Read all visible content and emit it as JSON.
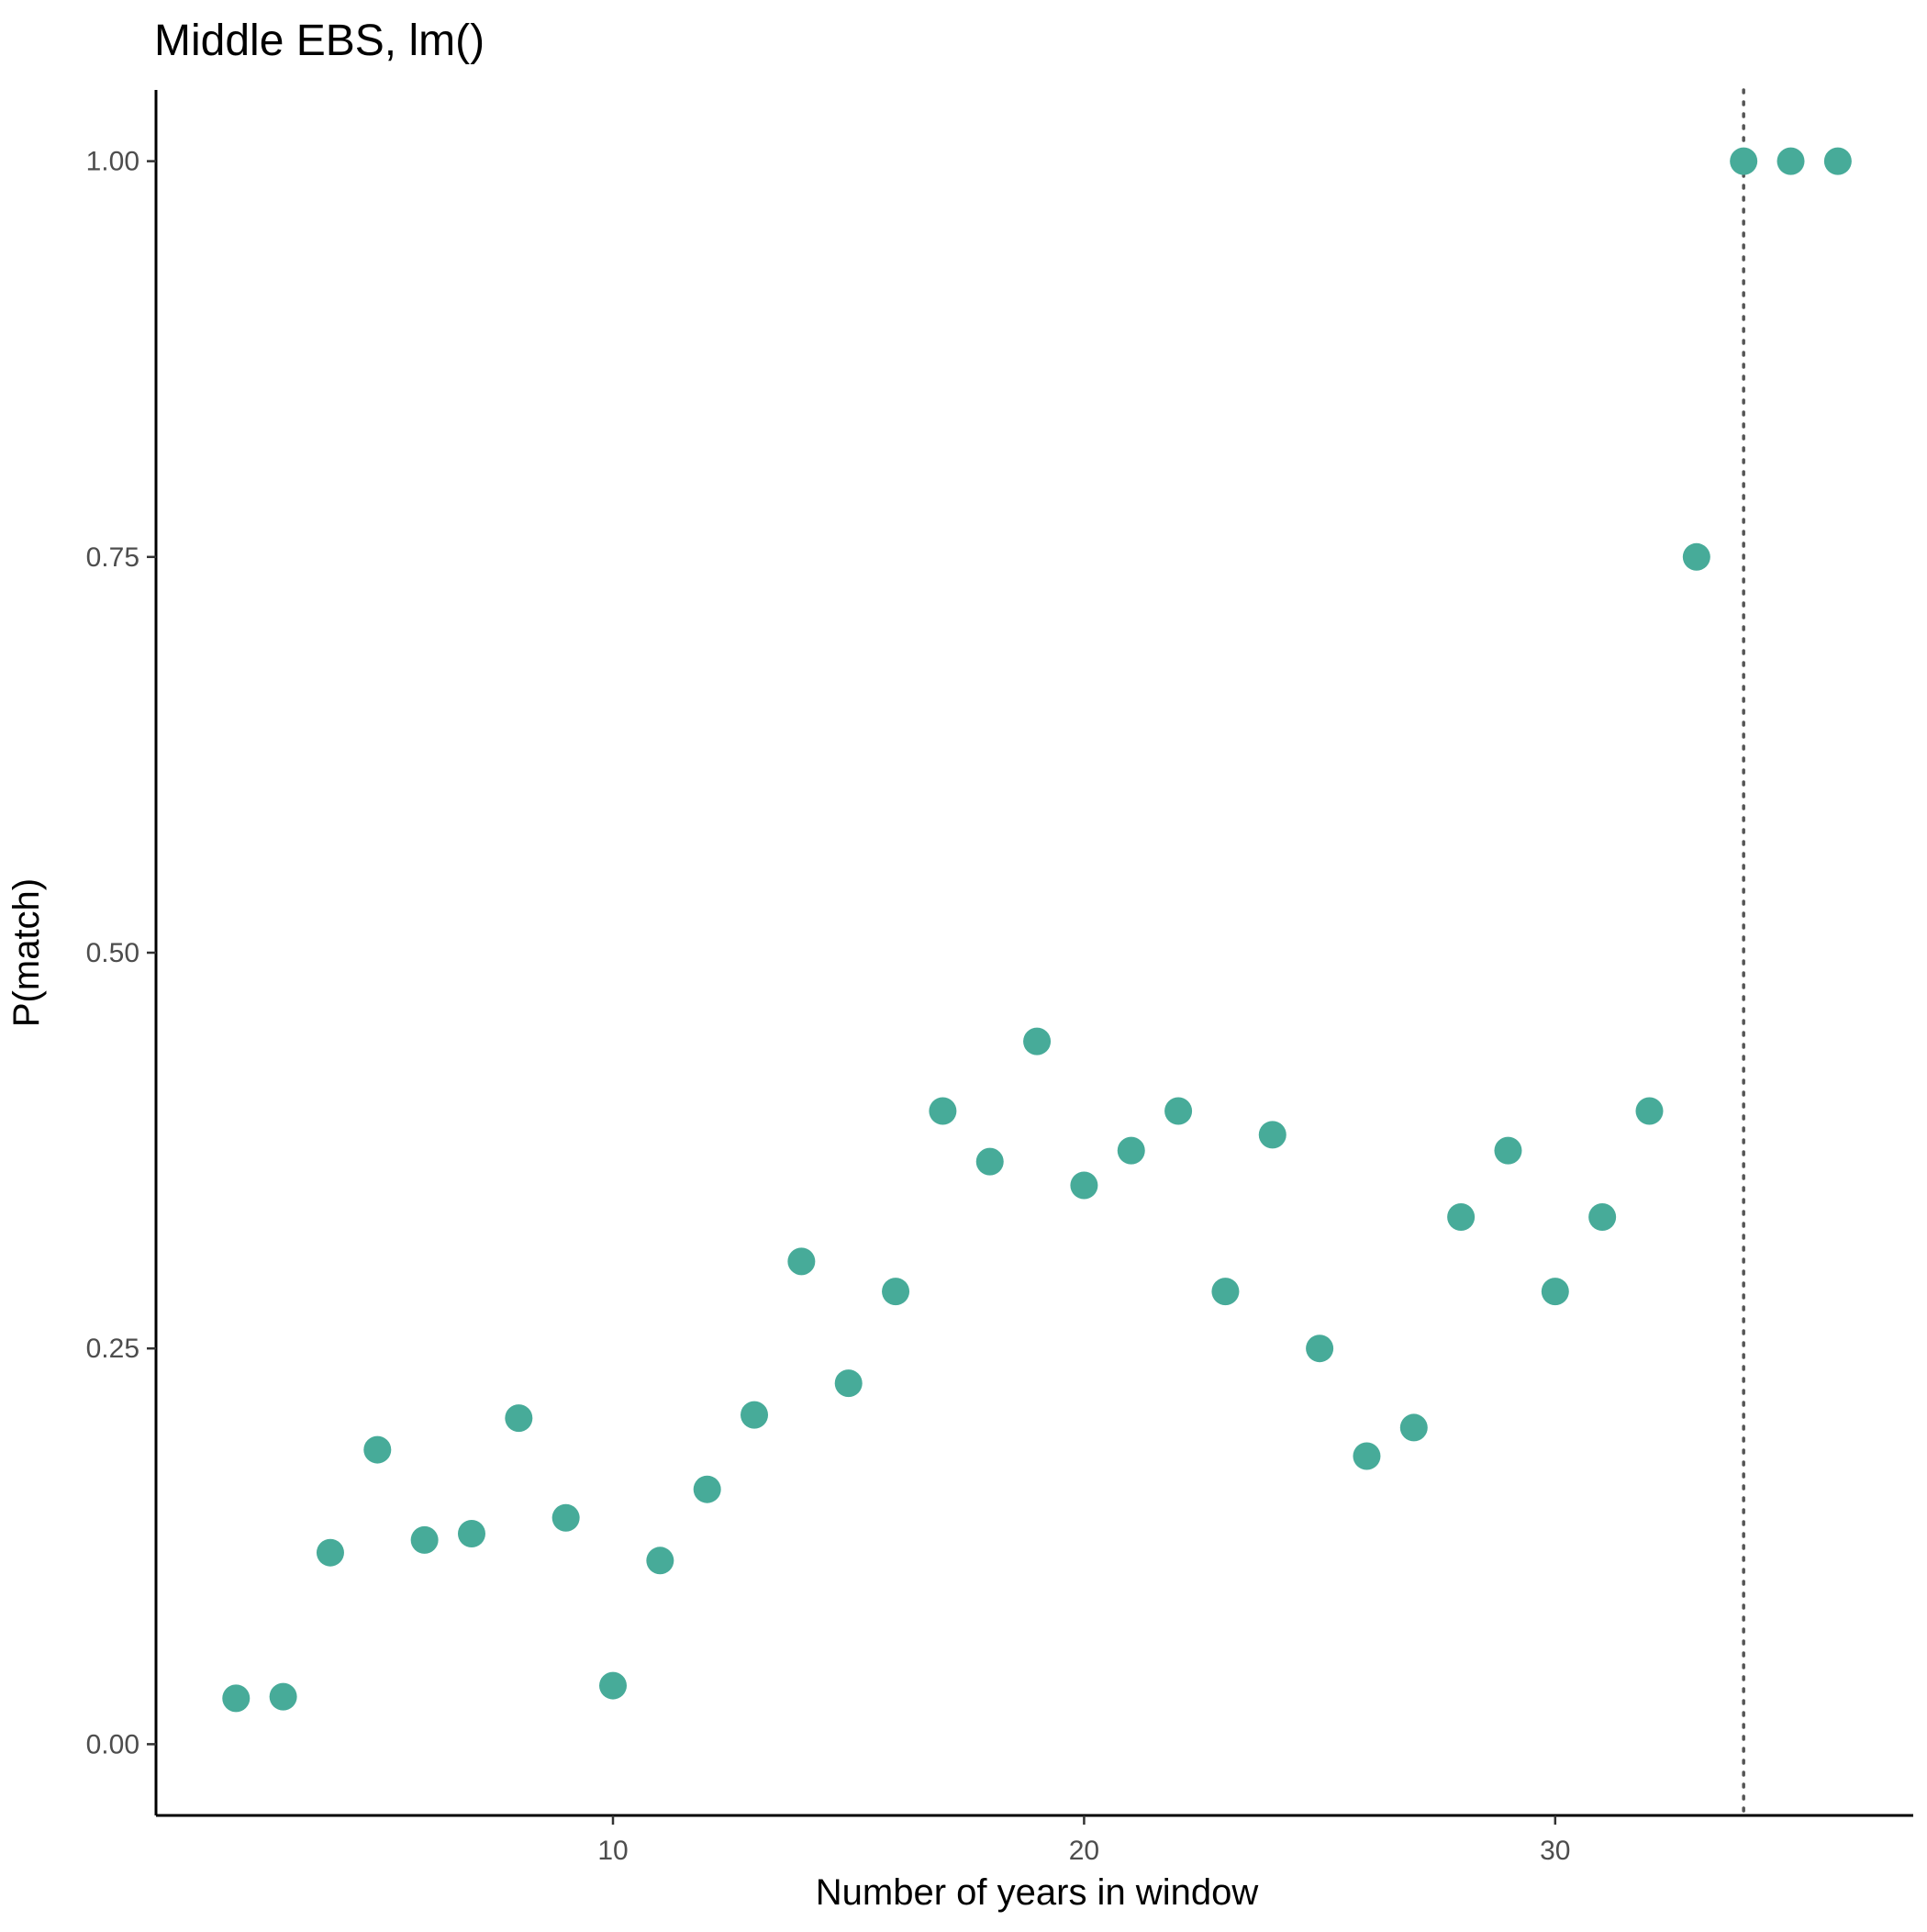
{
  "chart_data": {
    "type": "scatter",
    "title": "Middle EBS, lm()",
    "xlabel": "Number of years in window",
    "ylabel": "P(match)",
    "xlim": [
      0.3,
      37.6
    ],
    "ylim": [
      -0.045,
      1.045
    ],
    "x_ticks": [
      10,
      20,
      30
    ],
    "x_tick_labels": [
      "10",
      "20",
      "30"
    ],
    "y_ticks": [
      0,
      0.25,
      0.5,
      0.75,
      1
    ],
    "y_tick_labels": [
      "0.00",
      "0.25",
      "0.50",
      "0.75",
      "1.00"
    ],
    "grid": false,
    "legend": "none",
    "point_color": "#47AB99",
    "vline": {
      "x": 34,
      "style": "dotted",
      "color": "#555555"
    },
    "points": [
      {
        "x": 2,
        "y": 0.029
      },
      {
        "x": 3,
        "y": 0.03
      },
      {
        "x": 4,
        "y": 0.121
      },
      {
        "x": 5,
        "y": 0.186
      },
      {
        "x": 6,
        "y": 0.129
      },
      {
        "x": 7,
        "y": 0.133
      },
      {
        "x": 8,
        "y": 0.206
      },
      {
        "x": 9,
        "y": 0.143
      },
      {
        "x": 10,
        "y": 0.037
      },
      {
        "x": 11,
        "y": 0.116
      },
      {
        "x": 12,
        "y": 0.161
      },
      {
        "x": 13,
        "y": 0.208
      },
      {
        "x": 14,
        "y": 0.305
      },
      {
        "x": 15,
        "y": 0.228
      },
      {
        "x": 16,
        "y": 0.286
      },
      {
        "x": 17,
        "y": 0.4
      },
      {
        "x": 18,
        "y": 0.368
      },
      {
        "x": 19,
        "y": 0.444
      },
      {
        "x": 20,
        "y": 0.353
      },
      {
        "x": 21,
        "y": 0.375
      },
      {
        "x": 22,
        "y": 0.4
      },
      {
        "x": 23,
        "y": 0.286
      },
      {
        "x": 24,
        "y": 0.385
      },
      {
        "x": 25,
        "y": 0.25
      },
      {
        "x": 26,
        "y": 0.182
      },
      {
        "x": 27,
        "y": 0.2
      },
      {
        "x": 28,
        "y": 0.333
      },
      {
        "x": 29,
        "y": 0.375
      },
      {
        "x": 30,
        "y": 0.286
      },
      {
        "x": 31,
        "y": 0.333
      },
      {
        "x": 32,
        "y": 0.4
      },
      {
        "x": 33,
        "y": 0.75
      },
      {
        "x": 34,
        "y": 1.0
      },
      {
        "x": 35,
        "y": 1.0
      },
      {
        "x": 36,
        "y": 1.0
      }
    ]
  }
}
